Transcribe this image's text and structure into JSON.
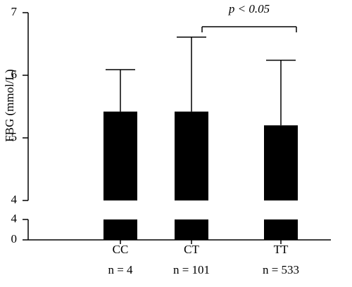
{
  "chart_data": {
    "type": "bar",
    "y_label": "FBG (mmol/L)",
    "categories": [
      "CC",
      "CT",
      "TT"
    ],
    "n_labels": [
      "n = 4",
      "n = 101",
      "n = 533"
    ],
    "values": [
      5.42,
      5.42,
      5.2
    ],
    "errors": [
      0.67,
      1.19,
      1.04
    ],
    "color": "#000000",
    "ylim": [
      4,
      7
    ],
    "yticks": [
      4,
      5,
      6,
      7
    ],
    "ylim_lower": [
      0,
      4
    ],
    "yticks_lower": [
      0,
      4
    ],
    "annotation": "p < 0.05"
  }
}
